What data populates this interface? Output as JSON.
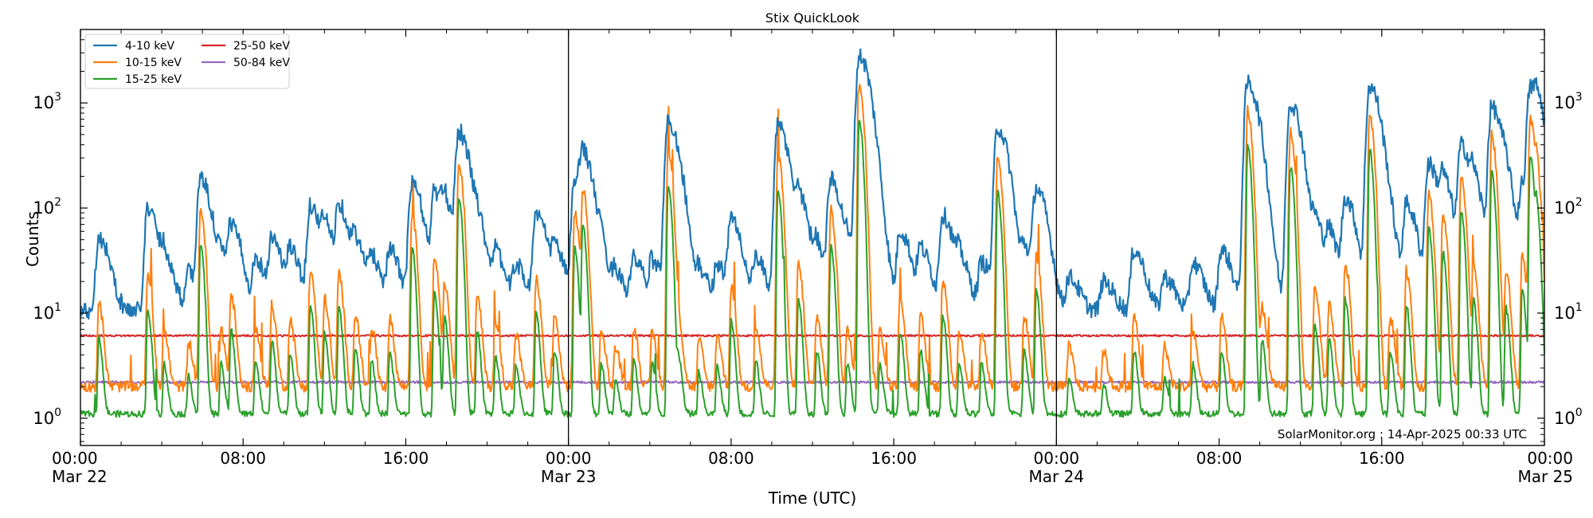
{
  "chart_data": {
    "type": "line",
    "title": "Stix QuickLook",
    "xlabel": "Time (UTC)",
    "ylabel": "Counts",
    "yscale": "log",
    "ylim": [
      0.55,
      5000
    ],
    "xlim_hours": [
      0,
      72
    ],
    "x_ticks": [
      {
        "hour": 0,
        "line1": "00:00",
        "line2": "Mar 22"
      },
      {
        "hour": 8,
        "line1": "08:00",
        "line2": ""
      },
      {
        "hour": 16,
        "line1": "16:00",
        "line2": ""
      },
      {
        "hour": 24,
        "line1": "00:00",
        "line2": "Mar 23"
      },
      {
        "hour": 32,
        "line1": "08:00",
        "line2": ""
      },
      {
        "hour": 40,
        "line1": "16:00",
        "line2": ""
      },
      {
        "hour": 48,
        "line1": "00:00",
        "line2": "Mar 24"
      },
      {
        "hour": 56,
        "line1": "08:00",
        "line2": ""
      },
      {
        "hour": 64,
        "line1": "16:00",
        "line2": ""
      },
      {
        "hour": 72,
        "line1": "00:00",
        "line2": "Mar 25"
      }
    ],
    "y_ticks": [
      {
        "value": 1,
        "label_base": "10",
        "label_exp": "0"
      },
      {
        "value": 10,
        "label_base": "10",
        "label_exp": "1"
      },
      {
        "value": 100,
        "label_base": "10",
        "label_exp": "2"
      },
      {
        "value": 1000,
        "label_base": "10",
        "label_exp": "3"
      }
    ],
    "day_boundaries_hours": [
      24,
      48
    ],
    "legend": {
      "placement": "top-left",
      "columns": 2
    },
    "series": [
      {
        "name": "4-10 keV",
        "color": "#1f77b4",
        "baseline": 10.5,
        "noise": 0.14,
        "peak_scale": 1.0,
        "peak_width_factor": 1.0
      },
      {
        "name": "10-15 keV",
        "color": "#ff7f0e",
        "baseline": 2.0,
        "noise": 0.12,
        "peak_scale": 0.55,
        "peak_width_factor": 0.6
      },
      {
        "name": "15-25 keV",
        "color": "#2ca02c",
        "baseline": 1.1,
        "noise": 0.07,
        "peak_scale": 0.25,
        "peak_width_factor": 0.5
      },
      {
        "name": "25-50 keV",
        "color": "#d62728",
        "baseline": 6.1,
        "noise": 0.02,
        "peak_scale": 0.0,
        "peak_width_factor": 0.5
      },
      {
        "name": "50-84 keV",
        "color": "#9467bd",
        "baseline": 2.2,
        "noise": 0.025,
        "peak_scale": 0.0,
        "peak_width_factor": 0.5
      }
    ],
    "flares_4_10keV": [
      {
        "t": 0.9,
        "peak": 52
      },
      {
        "t": 3.3,
        "peak": 98
      },
      {
        "t": 4.1,
        "peak": 30
      },
      {
        "t": 5.3,
        "peak": 24
      },
      {
        "t": 5.9,
        "peak": 185
      },
      {
        "t": 6.9,
        "peak": 30
      },
      {
        "t": 7.4,
        "peak": 62
      },
      {
        "t": 8.6,
        "peak": 32
      },
      {
        "t": 9.4,
        "peak": 50
      },
      {
        "t": 10.3,
        "peak": 38
      },
      {
        "t": 11.3,
        "peak": 105
      },
      {
        "t": 12.0,
        "peak": 58
      },
      {
        "t": 12.7,
        "peak": 100
      },
      {
        "t": 13.5,
        "peak": 42
      },
      {
        "t": 14.3,
        "peak": 32
      },
      {
        "t": 15.2,
        "peak": 38
      },
      {
        "t": 16.3,
        "peak": 170
      },
      {
        "t": 17.4,
        "peak": 140
      },
      {
        "t": 17.9,
        "peak": 80
      },
      {
        "t": 18.6,
        "peak": 520
      },
      {
        "t": 19.5,
        "peak": 60
      },
      {
        "t": 20.4,
        "peak": 35
      },
      {
        "t": 21.4,
        "peak": 28
      },
      {
        "t": 22.4,
        "peak": 88
      },
      {
        "t": 23.3,
        "peak": 40
      },
      {
        "t": 24.3,
        "peak": 175
      },
      {
        "t": 24.7,
        "peak": 275
      },
      {
        "t": 25.6,
        "peak": 30
      },
      {
        "t": 26.3,
        "peak": 22
      },
      {
        "t": 27.2,
        "peak": 32
      },
      {
        "t": 28.1,
        "peak": 30
      },
      {
        "t": 28.9,
        "peak": 650
      },
      {
        "t": 29.4,
        "peak": 35
      },
      {
        "t": 30.4,
        "peak": 25
      },
      {
        "t": 31.3,
        "peak": 28
      },
      {
        "t": 32.0,
        "peak": 75
      },
      {
        "t": 33.2,
        "peak": 32
      },
      {
        "t": 34.3,
        "peak": 600
      },
      {
        "t": 35.3,
        "peak": 120
      },
      {
        "t": 36.2,
        "peak": 40
      },
      {
        "t": 36.9,
        "peak": 180
      },
      {
        "t": 37.7,
        "peak": 30
      },
      {
        "t": 38.3,
        "peak": 2800
      },
      {
        "t": 39.3,
        "peak": 30
      },
      {
        "t": 40.3,
        "peak": 60
      },
      {
        "t": 41.3,
        "peak": 40
      },
      {
        "t": 42.4,
        "peak": 85
      },
      {
        "t": 43.2,
        "peak": 30
      },
      {
        "t": 44.3,
        "peak": 30
      },
      {
        "t": 45.1,
        "peak": 580
      },
      {
        "t": 46.4,
        "peak": 40
      },
      {
        "t": 47.0,
        "peak": 145
      },
      {
        "t": 48.6,
        "peak": 22
      },
      {
        "t": 50.3,
        "peak": 20
      },
      {
        "t": 51.8,
        "peak": 40
      },
      {
        "t": 53.3,
        "peak": 22
      },
      {
        "t": 54.7,
        "peak": 30
      },
      {
        "t": 56.1,
        "peak": 40
      },
      {
        "t": 57.4,
        "peak": 1550
      },
      {
        "t": 58.1,
        "peak": 50
      },
      {
        "t": 59.5,
        "peak": 1000
      },
      {
        "t": 60.7,
        "peak": 70
      },
      {
        "t": 61.4,
        "peak": 50
      },
      {
        "t": 62.2,
        "peak": 120
      },
      {
        "t": 63.4,
        "peak": 1450
      },
      {
        "t": 64.4,
        "peak": 40
      },
      {
        "t": 65.2,
        "peak": 105
      },
      {
        "t": 66.3,
        "peak": 260
      },
      {
        "t": 67.0,
        "peak": 160
      },
      {
        "t": 67.9,
        "peak": 380
      },
      {
        "t": 68.5,
        "peak": 120
      },
      {
        "t": 69.4,
        "peak": 900
      },
      {
        "t": 70.1,
        "peak": 100
      },
      {
        "t": 70.9,
        "peak": 145
      },
      {
        "t": 71.3,
        "peak": 1300
      },
      {
        "t": 71.6,
        "peak": 400
      }
    ],
    "annotation": "SolarMonitor.org : 14-Apr-2025 00:33 UTC"
  }
}
